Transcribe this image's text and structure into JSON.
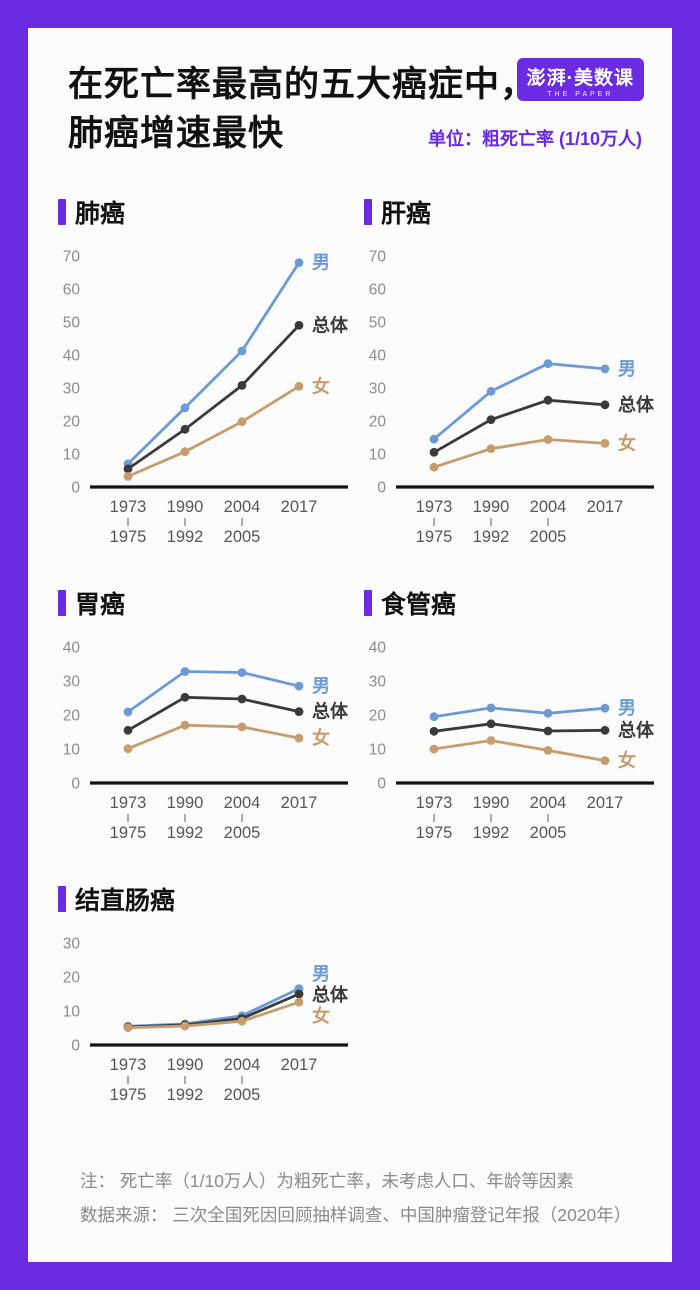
{
  "page": {
    "title_line1": "在死亡率最高的五大癌症中，",
    "title_line2": "肺癌增速最快",
    "unit_label": "单位：粗死亡率 (1/10万人)",
    "logo": {
      "main": "澎湃·美数课",
      "sub": "THE PAPER"
    },
    "notes": [
      "注： 死亡率（1/10万人）为粗死亡率，未考虑人口、年龄等因素",
      "数据来源： 三次全国死因回顾抽样调查、中国肿瘤登记年报（2020年）"
    ]
  },
  "colors": {
    "accent": "#6A2BE2",
    "male": "#6B9BD2",
    "total": "#3A3A3A",
    "female": "#C79C6D"
  },
  "chart_data": [
    {
      "type": "line",
      "title": "肺癌",
      "categories": [
        "1973-1975",
        "1990-1992",
        "2004-2005",
        "2017"
      ],
      "x_tick_lines": [
        [
          "1973",
          "1975"
        ],
        [
          "1990",
          "1992"
        ],
        [
          "2004",
          "2005"
        ],
        [
          "2017"
        ]
      ],
      "ylim": [
        0,
        70
      ],
      "yticks": [
        0,
        10,
        20,
        30,
        40,
        50,
        60,
        70
      ],
      "grid": false,
      "legend_position": "end-of-line",
      "series": [
        {
          "name": "男",
          "key": "male",
          "values": [
            7.0,
            24.0,
            41.2,
            68.0
          ]
        },
        {
          "name": "总体",
          "key": "total",
          "values": [
            5.5,
            17.5,
            30.8,
            49.0
          ]
        },
        {
          "name": "女",
          "key": "female",
          "values": [
            3.2,
            10.7,
            19.8,
            30.5
          ]
        }
      ]
    },
    {
      "type": "line",
      "title": "肝癌",
      "categories": [
        "1973-1975",
        "1990-1992",
        "2004-2005",
        "2017"
      ],
      "x_tick_lines": [
        [
          "1973",
          "1975"
        ],
        [
          "1990",
          "1992"
        ],
        [
          "2004",
          "2005"
        ],
        [
          "2017"
        ]
      ],
      "ylim": [
        0,
        70
      ],
      "yticks": [
        0,
        10,
        20,
        30,
        40,
        50,
        60,
        70
      ],
      "grid": false,
      "legend_position": "end-of-line",
      "series": [
        {
          "name": "男",
          "key": "male",
          "values": [
            14.5,
            29.0,
            37.4,
            35.8
          ]
        },
        {
          "name": "总体",
          "key": "total",
          "values": [
            10.5,
            20.4,
            26.3,
            24.9
          ]
        },
        {
          "name": "女",
          "key": "female",
          "values": [
            6.0,
            11.6,
            14.4,
            13.2
          ]
        }
      ]
    },
    {
      "type": "line",
      "title": "胃癌",
      "categories": [
        "1973-1975",
        "1990-1992",
        "2004-2005",
        "2017"
      ],
      "x_tick_lines": [
        [
          "1973",
          "1975"
        ],
        [
          "1990",
          "1992"
        ],
        [
          "2004",
          "2005"
        ],
        [
          "2017"
        ]
      ],
      "ylim": [
        0,
        40
      ],
      "yticks": [
        0,
        10,
        20,
        30,
        40
      ],
      "grid": false,
      "legend_position": "end-of-line",
      "series": [
        {
          "name": "男",
          "key": "male",
          "values": [
            20.9,
            32.8,
            32.5,
            28.5
          ]
        },
        {
          "name": "总体",
          "key": "total",
          "values": [
            15.5,
            25.2,
            24.7,
            21.0
          ]
        },
        {
          "name": "女",
          "key": "female",
          "values": [
            10.1,
            17.0,
            16.5,
            13.2
          ]
        }
      ]
    },
    {
      "type": "line",
      "title": "食管癌",
      "categories": [
        "1973-1975",
        "1990-1992",
        "2004-2005",
        "2017"
      ],
      "x_tick_lines": [
        [
          "1973",
          "1975"
        ],
        [
          "1990",
          "1992"
        ],
        [
          "2004",
          "2005"
        ],
        [
          "2017"
        ]
      ],
      "ylim": [
        0,
        40
      ],
      "yticks": [
        0,
        10,
        20,
        30,
        40
      ],
      "grid": false,
      "legend_position": "end-of-line",
      "series": [
        {
          "name": "男",
          "key": "male",
          "values": [
            19.5,
            22.1,
            20.5,
            22.0
          ]
        },
        {
          "name": "总体",
          "key": "total",
          "values": [
            15.2,
            17.4,
            15.3,
            15.5
          ]
        },
        {
          "name": "女",
          "key": "female",
          "values": [
            10.0,
            12.5,
            9.6,
            6.6
          ]
        }
      ]
    },
    {
      "type": "line",
      "title": "结直肠癌",
      "categories": [
        "1973-1975",
        "1990-1992",
        "2004-2005",
        "2017"
      ],
      "x_tick_lines": [
        [
          "1973",
          "1975"
        ],
        [
          "1990",
          "1992"
        ],
        [
          "2004",
          "2005"
        ],
        [
          "2017"
        ]
      ],
      "ylim": [
        0,
        30
      ],
      "yticks": [
        0,
        10,
        20,
        30
      ],
      "grid": false,
      "legend_position": "end-of-line",
      "series": [
        {
          "name": "男",
          "key": "male",
          "values": [
            5.5,
            6.2,
            8.6,
            16.6
          ]
        },
        {
          "name": "总体",
          "key": "total",
          "values": [
            5.3,
            5.9,
            7.8,
            15.0
          ]
        },
        {
          "name": "女",
          "key": "female",
          "values": [
            5.1,
            5.6,
            7.0,
            12.6
          ]
        }
      ]
    }
  ]
}
